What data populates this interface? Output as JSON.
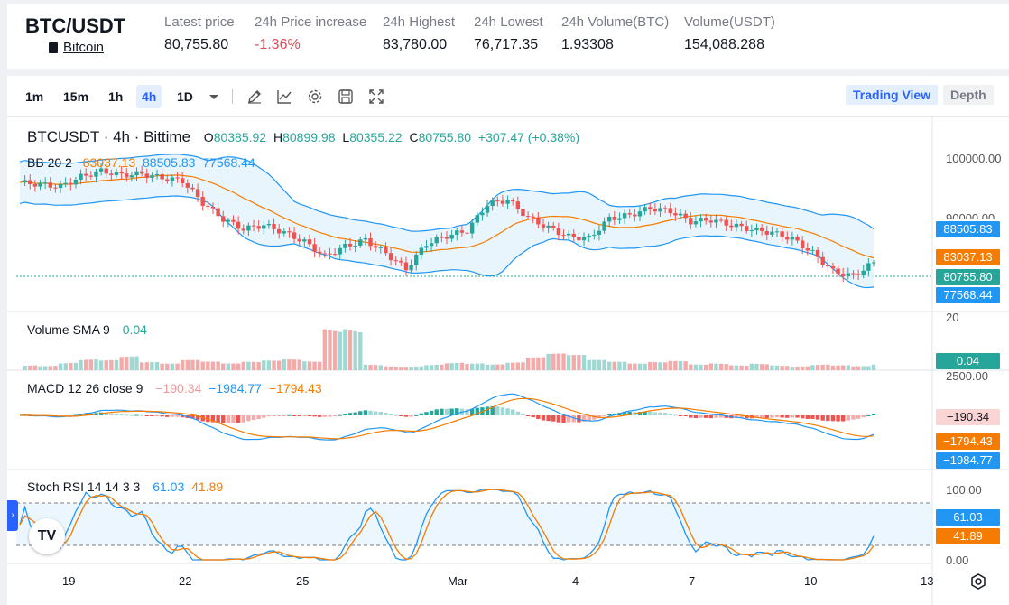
{
  "ticker": {
    "pair": "BTC/USDT",
    "coin_name": "Bitcoin",
    "stats": [
      {
        "label": "Latest price",
        "value": "80,755.80",
        "neg": false
      },
      {
        "label": "24h Price increase",
        "value": "-1.36%",
        "neg": true
      },
      {
        "label": "24h Highest",
        "value": "83,780.00",
        "neg": false
      },
      {
        "label": "24h Lowest",
        "value": "76,717.35",
        "neg": false
      },
      {
        "label": "24h Volume(BTC)",
        "value": "1.93308",
        "neg": false
      },
      {
        "label": "Volume(USDT)",
        "value": "154,088.288",
        "neg": false
      }
    ]
  },
  "toolbar": {
    "timeframes": [
      "1m",
      "15m",
      "1h",
      "4h",
      "1D"
    ],
    "active_timeframe": "4h",
    "views": [
      "Trading View",
      "Depth"
    ],
    "active_view": "Trading View",
    "icons": [
      "dropdown-caret-icon",
      "draw-pen-icon",
      "indicators-icon",
      "gear-icon",
      "save-icon",
      "fullscreen-icon"
    ]
  },
  "chart": {
    "symbol_line": "BTCUSDT · 4h · Bittime",
    "ohlc": {
      "o_label": "O",
      "o": "80385.92",
      "h_label": "H",
      "h": "80899.98",
      "l_label": "L",
      "l": "80355.22",
      "c_label": "C",
      "c": "80755.80",
      "change": "+307.47 (+0.38%)"
    },
    "bb": {
      "label": "BB 20 2",
      "v1": "83037.13",
      "v2": "88505.83",
      "v3": "77568.44"
    },
    "volume": {
      "label": "Volume SMA 9",
      "value": "0.04"
    },
    "macd": {
      "label": "MACD 12 26 close 9",
      "v1": "−190.34",
      "v2": "−1984.77",
      "v3": "−1794.43"
    },
    "stoch": {
      "label": "Stoch RSI 14 14 3 3",
      "v1": "61.03",
      "v2": "41.89"
    },
    "price_axis": {
      "top": "100000.00",
      "partial": "90000.00"
    },
    "price_tags": {
      "upper": "88505.83",
      "mid": "83037.13",
      "last": "80755.80",
      "lower": "77568.44"
    },
    "volume_axis": {
      "top": "20",
      "tag": "0.04"
    },
    "macd_axis": {
      "top": "2500.00",
      "tag1": "−190.34",
      "tag2": "−1794.43",
      "tag3": "−1984.77"
    },
    "stoch_axis": {
      "top": "100.00",
      "bottom": "0.00",
      "tag1": "61.03",
      "tag2": "41.89"
    },
    "x_labels": [
      "19",
      "22",
      "25",
      "Mar",
      "4",
      "7",
      "10",
      "13"
    ],
    "colors": {
      "up": "#26a69a",
      "down": "#ef5350",
      "bb_mid": "#f57c00",
      "bb_band": "#2196f3",
      "macd": "#2196f3",
      "signal": "#f57c00",
      "stoch_k": "#2196f3",
      "stoch_d": "#f57c00"
    }
  },
  "chart_data": {
    "type": "candlestick",
    "price_approx": [
      94500,
      94200,
      93800,
      95500,
      96500,
      95800,
      96000,
      95300,
      94800,
      91000,
      88200,
      86500,
      87200,
      85900,
      84300,
      81800,
      83500,
      84600,
      82300,
      79600,
      84000,
      85300,
      86200,
      90800,
      91500,
      88500,
      86700,
      85200,
      84900,
      88300,
      88900,
      90100,
      89600,
      87800,
      88100,
      87200,
      86400,
      85900,
      84800,
      82400,
      79200,
      78400,
      80755.8
    ],
    "volume_approx": [
      0.05,
      0.04,
      0.06,
      0.08,
      0.07,
      0.09,
      0.05,
      0.04,
      0.06,
      0.05,
      0.04,
      0.05,
      0.06,
      0.07,
      0.06,
      0.3,
      0.33,
      0.05,
      0.04,
      0.04,
      0.05,
      0.06,
      0.05,
      0.04,
      0.05,
      0.08,
      0.1,
      0.09,
      0.06,
      0.05,
      0.04,
      0.05,
      0.06,
      0.04,
      0.05,
      0.04,
      0.06,
      0.05,
      0.04,
      0.05,
      0.04,
      0.03,
      0.04
    ]
  }
}
